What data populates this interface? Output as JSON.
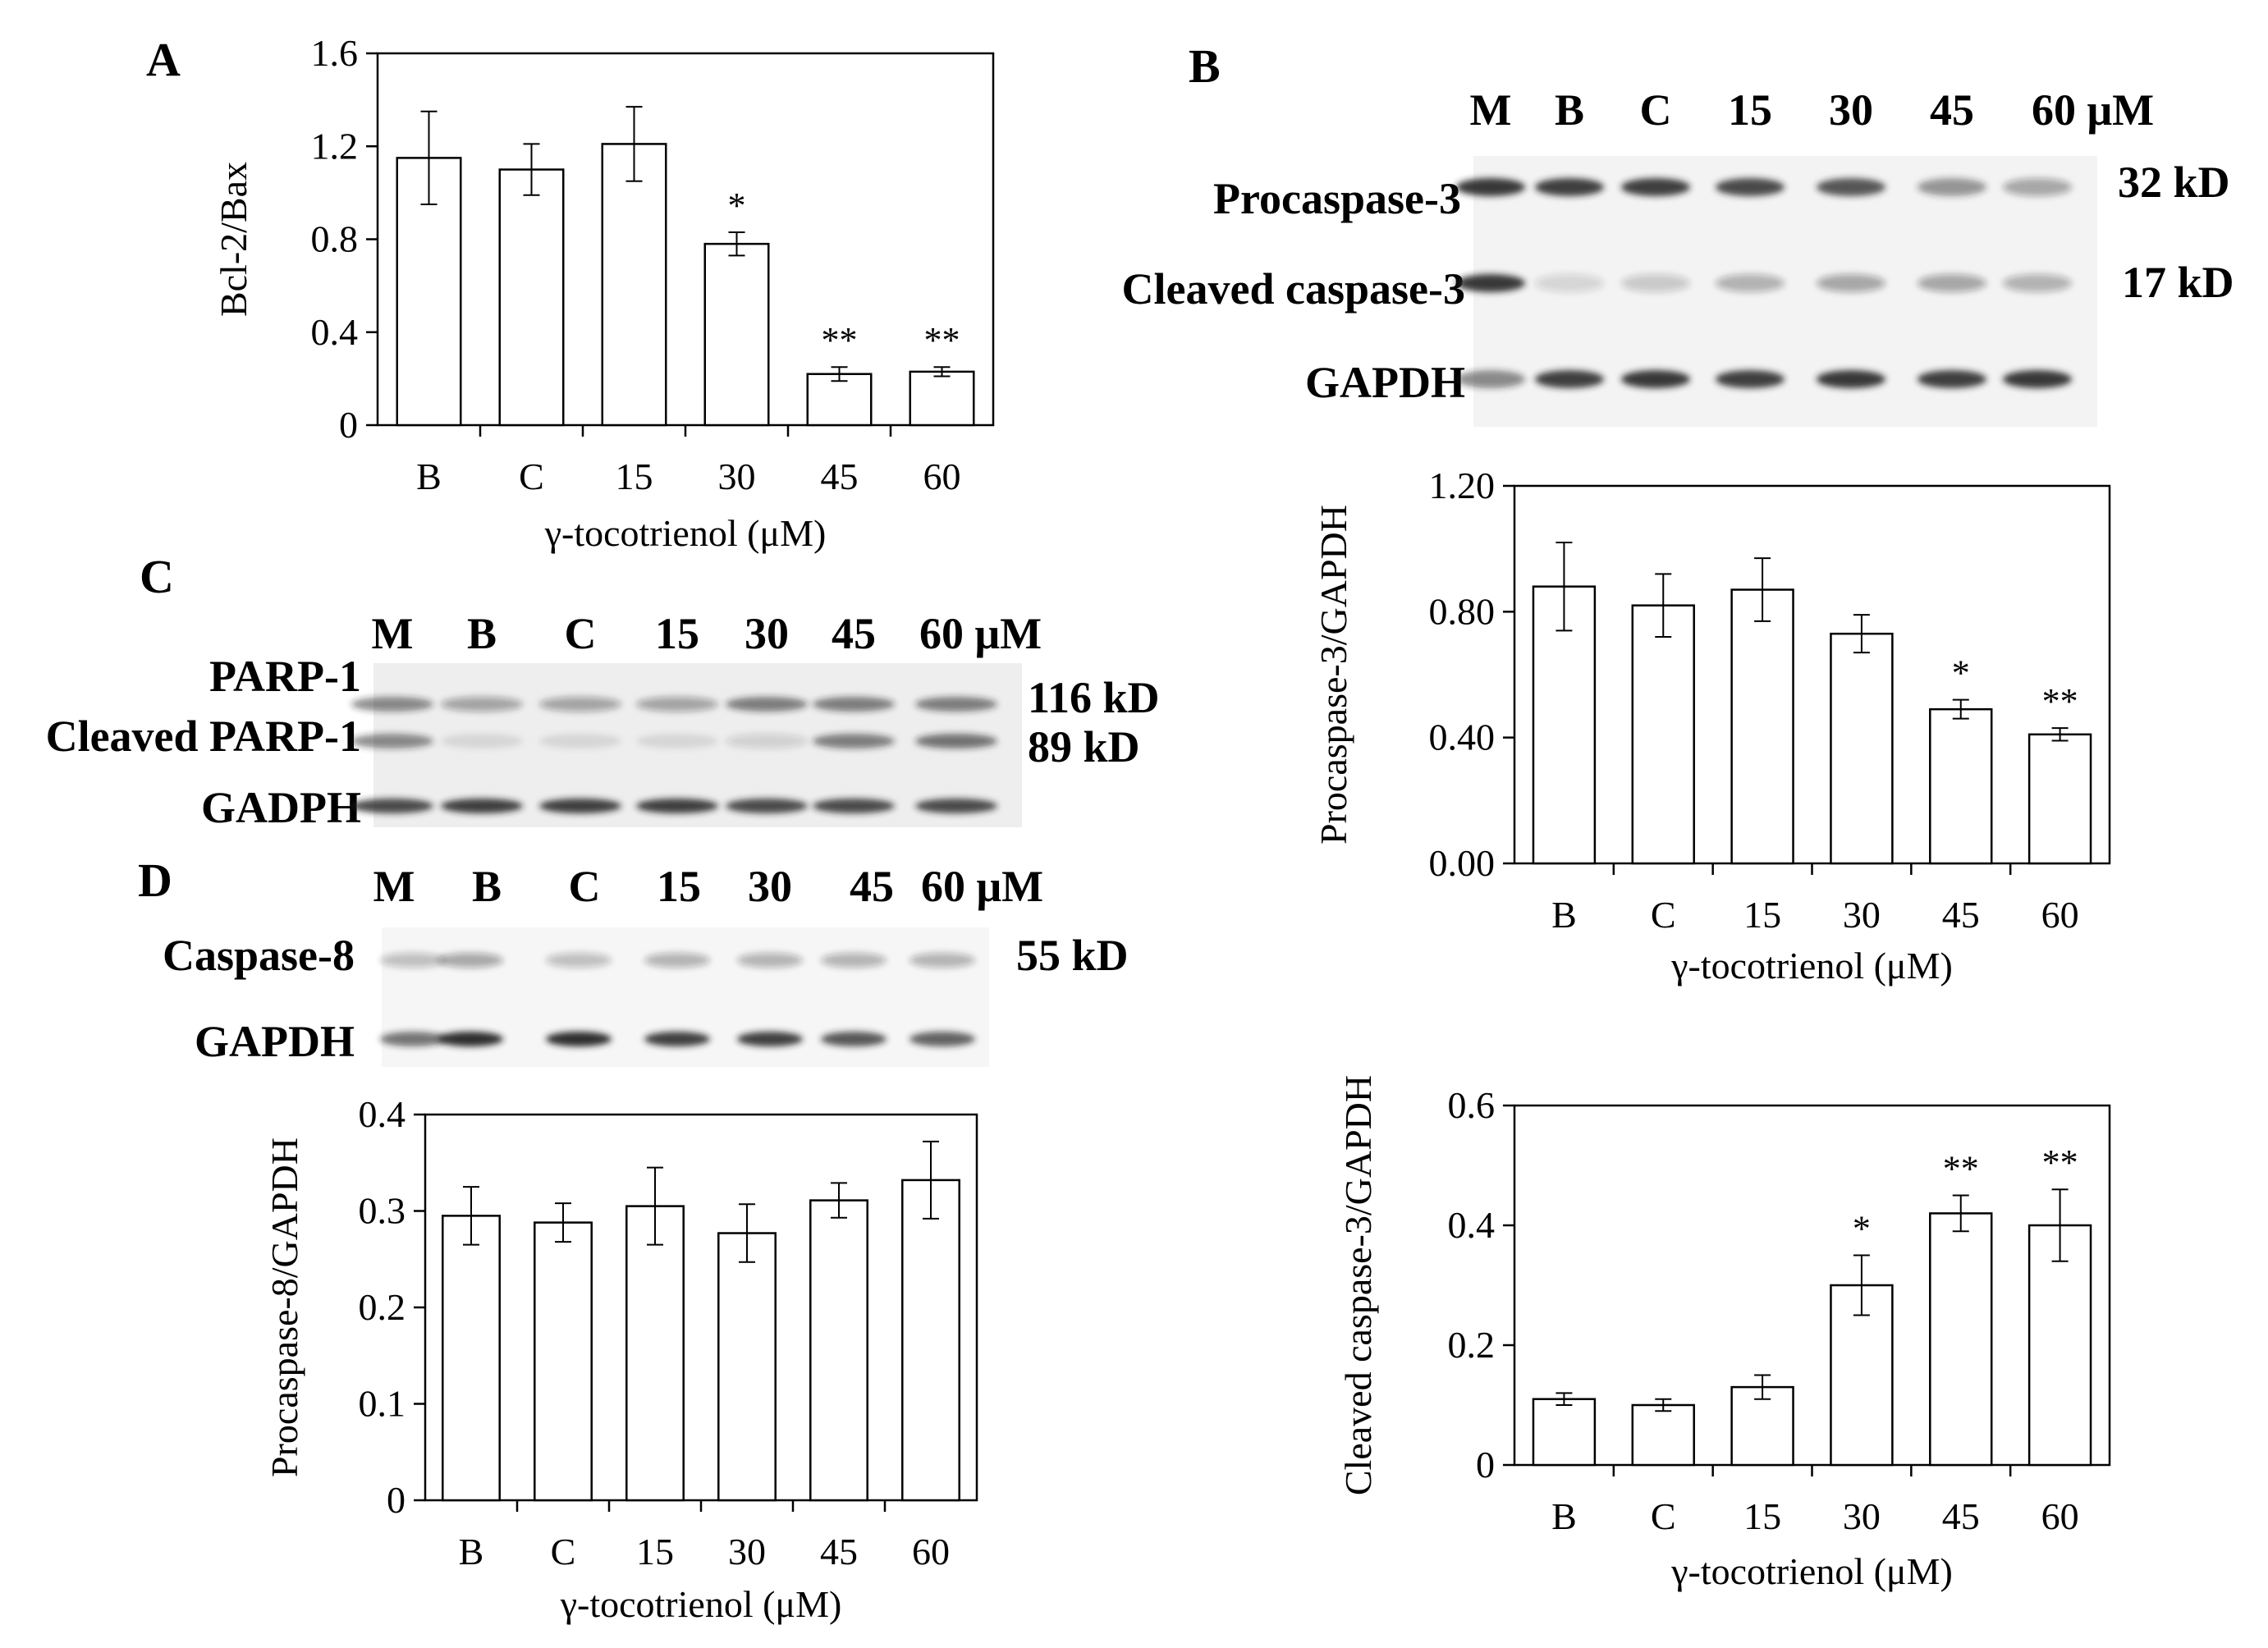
{
  "figure": {
    "panel_letters": {
      "A": "A",
      "B": "B",
      "C": "C",
      "D": "D"
    }
  },
  "blots": {
    "B": {
      "lanes": [
        "M",
        "B",
        "C",
        "15",
        "30",
        "45",
        "60 μM"
      ],
      "rows": [
        {
          "label": "Procaspase-3",
          "kd": "32 kD",
          "intensity": [
            0.9,
            0.85,
            0.85,
            0.8,
            0.75,
            0.45,
            0.35
          ]
        },
        {
          "label": "Cleaved caspase-3",
          "kd": "17 kD",
          "intensity": [
            0.9,
            0.15,
            0.2,
            0.3,
            0.35,
            0.35,
            0.3
          ]
        },
        {
          "label": "GAPDH",
          "kd": "",
          "intensity": [
            0.5,
            0.85,
            0.9,
            0.85,
            0.9,
            0.85,
            0.9
          ]
        }
      ]
    },
    "C": {
      "lanes": [
        "M",
        "B",
        "C",
        "15",
        "30",
        "45",
        "60 μM"
      ],
      "rows": [
        {
          "label": "PARP-1",
          "kd": "116 kD",
          "intensity": [
            0.5,
            0.35,
            0.35,
            0.35,
            0.55,
            0.55,
            0.55
          ]
        },
        {
          "label": "Cleaved PARP-1",
          "kd": "89 kD",
          "intensity": [
            0.5,
            0.1,
            0.1,
            0.1,
            0.15,
            0.55,
            0.6
          ]
        },
        {
          "label": "GADPH",
          "kd": "",
          "intensity": [
            0.8,
            0.85,
            0.85,
            0.85,
            0.8,
            0.8,
            0.8
          ]
        }
      ]
    },
    "D": {
      "lanes": [
        "M",
        "B",
        "C",
        "15",
        "30",
        "45",
        "60 μM"
      ],
      "rows": [
        {
          "label": "Caspase-8",
          "kd": "55 kD",
          "intensity": [
            0.25,
            0.35,
            0.25,
            0.3,
            0.3,
            0.3,
            0.3
          ]
        },
        {
          "label": "GAPDH",
          "kd": "",
          "intensity": [
            0.6,
            0.95,
            0.95,
            0.85,
            0.85,
            0.75,
            0.7
          ]
        }
      ]
    }
  },
  "chart_data": [
    {
      "id": "A",
      "type": "bar",
      "categories": [
        "B",
        "C",
        "15",
        "30",
        "45",
        "60"
      ],
      "values": [
        1.15,
        1.1,
        1.21,
        0.78,
        0.22,
        0.23
      ],
      "errors": [
        0.2,
        0.11,
        0.16,
        0.05,
        0.03,
        0.02
      ],
      "significance": [
        "",
        "",
        "",
        "*",
        "**",
        "**"
      ],
      "ylabel": "Bcl-2/Bax",
      "xlabel": "γ-tocotrienol (μM)",
      "ylim": [
        0,
        1.6
      ],
      "yticks": [
        "0",
        "0.4",
        "0.8",
        "1.2",
        "1.6"
      ]
    },
    {
      "id": "B1",
      "type": "bar",
      "categories": [
        "B",
        "C",
        "15",
        "30",
        "45",
        "60"
      ],
      "values": [
        0.88,
        0.82,
        0.87,
        0.73,
        0.49,
        0.41
      ],
      "errors": [
        0.14,
        0.1,
        0.1,
        0.06,
        0.03,
        0.02
      ],
      "significance": [
        "",
        "",
        "",
        "",
        "*",
        "**"
      ],
      "ylabel": "Procaspase-3/GAPDH",
      "xlabel": "γ-tocotrienol (μM)",
      "ylim": [
        0,
        1.2
      ],
      "yticks": [
        "0.00",
        "0.40",
        "0.80",
        "1.20"
      ]
    },
    {
      "id": "B2",
      "type": "bar",
      "categories": [
        "B",
        "C",
        "15",
        "30",
        "45",
        "60"
      ],
      "values": [
        0.11,
        0.1,
        0.13,
        0.3,
        0.42,
        0.4
      ],
      "errors": [
        0.01,
        0.01,
        0.02,
        0.05,
        0.03,
        0.06
      ],
      "significance": [
        "",
        "",
        "",
        "*",
        "**",
        "**"
      ],
      "ylabel": "Cleaved caspase-3/GAPDH",
      "xlabel": "γ-tocotrienol (μM)",
      "ylim": [
        0,
        0.6
      ],
      "yticks": [
        "0",
        "0.2",
        "0.4",
        "0.6"
      ]
    },
    {
      "id": "D",
      "type": "bar",
      "categories": [
        "B",
        "C",
        "15",
        "30",
        "45",
        "60"
      ],
      "values": [
        0.295,
        0.288,
        0.305,
        0.277,
        0.311,
        0.332
      ],
      "errors": [
        0.03,
        0.02,
        0.04,
        0.03,
        0.018,
        0.04
      ],
      "significance": [
        "",
        "",
        "",
        "",
        "",
        ""
      ],
      "ylabel": "Procaspase-8/GAPDH",
      "xlabel": "γ-tocotrienol (μM)",
      "ylim": [
        0,
        0.4
      ],
      "yticks": [
        "0",
        "0.1",
        "0.2",
        "0.3",
        "0.4"
      ]
    }
  ]
}
